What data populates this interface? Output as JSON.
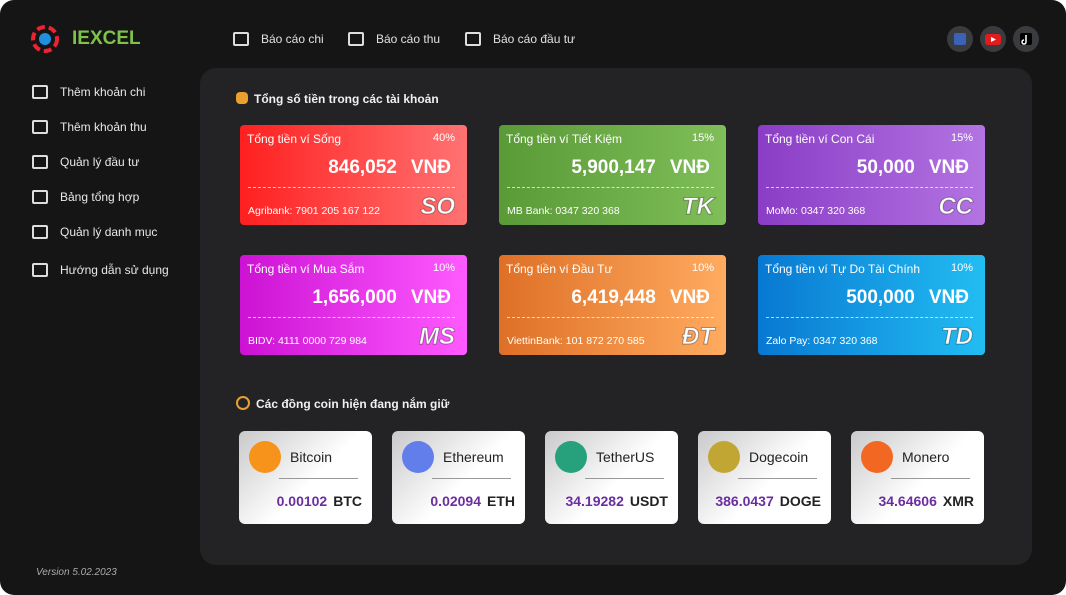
{
  "sidebar": {
    "logo": "IEXCEL",
    "menu": [
      "Thêm khoản chi",
      "Thêm khoản thu",
      "Quản lý đầu tư",
      "Bảng tổng hợp",
      "Quản lý danh mục",
      "Hướng dẫn sử dụng"
    ],
    "version": "Version 5.02.2023"
  },
  "nav": [
    "Báo cáo chi",
    "Báo cáo thu",
    "Báo cáo đầu tư"
  ],
  "wallets": {
    "title": "Tổng số tiền trong các tài khoản",
    "items": [
      {
        "label": "Tổng tiền ví Sống",
        "percent": "40%",
        "amount": "846,052",
        "currency": "VNĐ",
        "account": "Agribank: 7901 205 167 122",
        "code": "SO"
      },
      {
        "label": "Tổng tiền ví Tiết Kiệm",
        "percent": "15%",
        "amount": "5,900,147",
        "currency": "VNĐ",
        "account": "MB Bank: 0347 320 368",
        "code": "TK"
      },
      {
        "label": "Tổng tiền ví Con Cái",
        "percent": "15%",
        "amount": "50,000",
        "currency": "VNĐ",
        "account": "MoMo:  0347 320 368",
        "code": "CC"
      },
      {
        "label": "Tổng tiền ví Mua Sắm",
        "percent": "10%",
        "amount": "1,656,000",
        "currency": "VNĐ",
        "account": "BIDV: 4111 0000 729 984",
        "code": "MS"
      },
      {
        "label": "Tổng tiền ví Đầu Tư",
        "percent": "10%",
        "amount": "6,419,448",
        "currency": "VNĐ",
        "account": "ViettinBank: 101 872 270 585",
        "code": "ĐT"
      },
      {
        "label": "Tổng tiền ví Tự Do Tài Chính",
        "percent": "10%",
        "amount": "500,000",
        "currency": "VNĐ",
        "account": "Zalo Pay: 0347 320 368",
        "code": "TD"
      }
    ]
  },
  "coins": {
    "title": "Các đồng coin hiện đang nắm giữ",
    "items": [
      {
        "name": "Bitcoin",
        "amount": "0.00102",
        "unit": "BTC"
      },
      {
        "name": "Ethereum",
        "amount": "0.02094",
        "unit": "ETH"
      },
      {
        "name": "TetherUS",
        "amount": "34.19282",
        "unit": "USDT"
      },
      {
        "name": "Dogecoin",
        "amount": "386.0437",
        "unit": "DOGE"
      },
      {
        "name": "Monero",
        "amount": "34.64606",
        "unit": "XMR"
      }
    ]
  }
}
